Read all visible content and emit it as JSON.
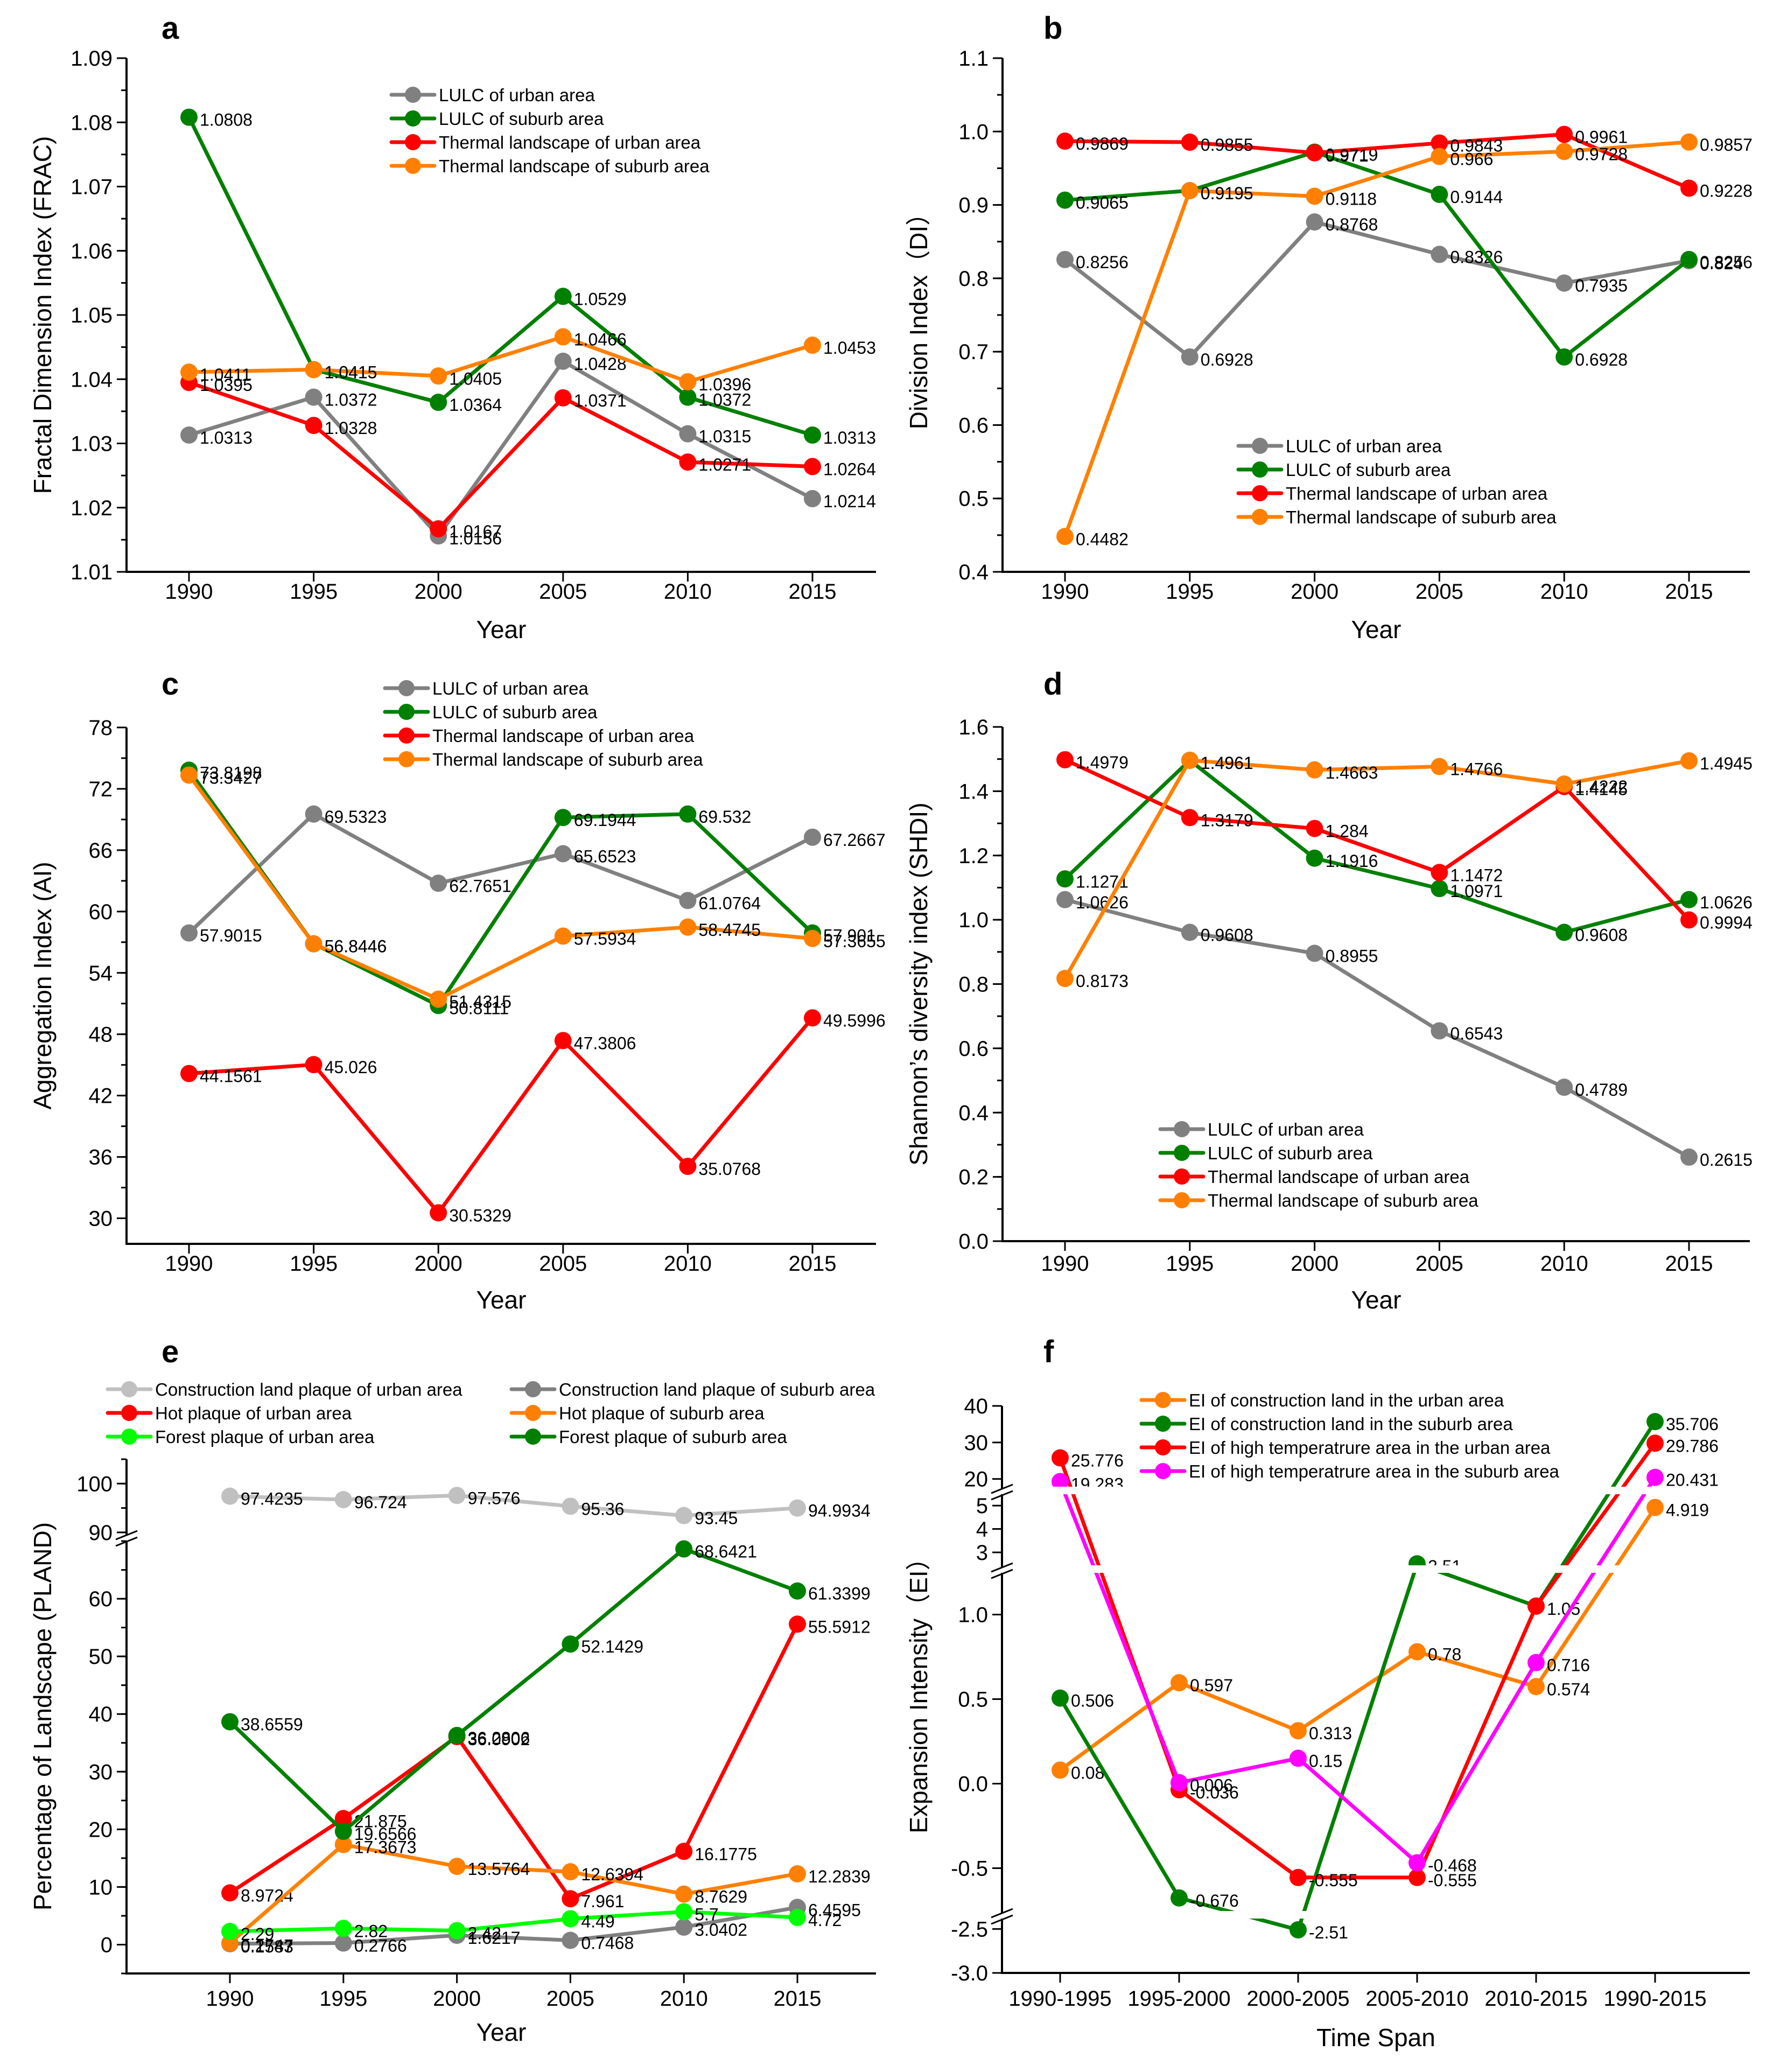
{
  "figure": {
    "panels": [
      "a",
      "b",
      "c",
      "d",
      "e",
      "f"
    ]
  },
  "colors": {
    "gray": "#808080",
    "green": "#008000",
    "red": "#ff0000",
    "orange": "#ff8000",
    "light_gray": "#c0c0c0",
    "light_green": "#00ff00",
    "magenta": "#ff00ff"
  },
  "chart_data": [
    {
      "id": "a",
      "panel_letter": "a",
      "type": "line",
      "xlabel": "Year",
      "ylabel": "Fractal Dimension Index (FRAC)",
      "categories": [
        "1990",
        "1995",
        "2000",
        "2005",
        "2010",
        "2015"
      ],
      "ylim": [
        1.01,
        1.09
      ],
      "yticks": [
        "1.01",
        "1.02",
        "1.03",
        "1.04",
        "1.05",
        "1.06",
        "1.07",
        "1.08",
        "1.09"
      ],
      "legend_position": "top-center",
      "series": [
        {
          "name": "LULC of urban area",
          "color": "#808080",
          "values": [
            1.0313,
            1.0372,
            1.0156,
            1.0428,
            1.0315,
            1.0214
          ],
          "labels": [
            "1.0313",
            "1.0372",
            "1.0156",
            "1.0428",
            "1.0315",
            "1.0214"
          ]
        },
        {
          "name": "LULC of suburb area",
          "color": "#008000",
          "values": [
            1.0808,
            1.0415,
            1.0364,
            1.0529,
            1.0372,
            1.0313
          ],
          "labels": [
            "1.0808",
            "1.0415",
            "1.0364",
            "1.0529",
            "1.0372",
            "1.0313"
          ]
        },
        {
          "name": "Thermal landscape of urban area",
          "color": "#ff0000",
          "values": [
            1.0395,
            1.0328,
            1.0167,
            1.0371,
            1.0271,
            1.0264
          ],
          "labels": [
            "1.0395",
            "1.0328",
            "1.0167",
            "1.0371",
            "1.0271",
            "1.0264"
          ]
        },
        {
          "name": "Thermal landscape of suburb area",
          "color": "#ff8000",
          "values": [
            1.0411,
            1.0415,
            1.0405,
            1.0466,
            1.0396,
            1.0453
          ],
          "labels": [
            "1.0411",
            "1.0415",
            "1.0405",
            "1.0466",
            "1.0396",
            "1.0453"
          ]
        }
      ]
    },
    {
      "id": "b",
      "panel_letter": "b",
      "type": "line",
      "xlabel": "Year",
      "ylabel": "Division Index（DI）",
      "categories": [
        "1990",
        "1995",
        "2000",
        "2005",
        "2010",
        "2015"
      ],
      "ylim": [
        0.4,
        1.1
      ],
      "yticks": [
        "0.4",
        "0.5",
        "0.6",
        "0.7",
        "0.8",
        "0.9",
        "1.0",
        "1.1"
      ],
      "legend_position": "bottom-center",
      "series": [
        {
          "name": "LULC of urban area",
          "color": "#808080",
          "values": [
            0.8256,
            0.6928,
            0.8768,
            0.8326,
            0.7935,
            0.824
          ],
          "labels": [
            "0.8256",
            "0.6928",
            "0.8768",
            "0.8326",
            "0.7935",
            "0.824"
          ]
        },
        {
          "name": "LULC of suburb area",
          "color": "#008000",
          "values": [
            0.9065,
            0.9195,
            0.9719,
            0.9144,
            0.6928,
            0.8256
          ],
          "labels": [
            "0.9065",
            "0.9195",
            "0.9719",
            "0.9144",
            "0.6928",
            "0.8256"
          ]
        },
        {
          "name": "Thermal landscape of urban area",
          "color": "#ff0000",
          "values": [
            0.9869,
            0.9855,
            0.971,
            0.9843,
            0.9961,
            0.9228
          ],
          "labels": [
            "0.9869",
            "0.9855",
            "0.971",
            "0.9843",
            "0.9961",
            "0.9228"
          ]
        },
        {
          "name": "Thermal landscape of suburb area",
          "color": "#ff8000",
          "values": [
            0.4482,
            0.9195,
            0.9118,
            0.966,
            0.9728,
            0.9857
          ],
          "labels": [
            "0.4482",
            "0.9195",
            "0.9118",
            "0.966",
            "0.9728",
            "0.9857"
          ]
        }
      ]
    },
    {
      "id": "c",
      "panel_letter": "c",
      "type": "line",
      "xlabel": "Year",
      "ylabel": "Aggregation Index (AI)",
      "categories": [
        "1990",
        "1995",
        "2000",
        "2005",
        "2010",
        "2015"
      ],
      "ylim": [
        27.5,
        78
      ],
      "yticks": [
        "30",
        "36",
        "42",
        "48",
        "54",
        "60",
        "66",
        "72",
        "78"
      ],
      "legend_position": "top-center",
      "series": [
        {
          "name": "LULC of urban area",
          "color": "#808080",
          "values": [
            57.9015,
            69.5323,
            62.7651,
            65.6523,
            61.0764,
            67.2667
          ],
          "labels": [
            "57.9015",
            "69.5323",
            "62.7651",
            "65.6523",
            "61.0764",
            "67.2667"
          ]
        },
        {
          "name": "LULC of suburb area",
          "color": "#008000",
          "values": [
            73.8198,
            56.8446,
            50.8111,
            69.1944,
            69.532,
            57.901
          ],
          "labels": [
            "73.8198",
            "56.8446",
            "50.8111",
            "69.1944",
            "69.532",
            "57.901"
          ]
        },
        {
          "name": "Thermal landscape of urban area",
          "color": "#ff0000",
          "values": [
            44.1561,
            45.026,
            30.5329,
            47.3806,
            35.0768,
            49.5996
          ],
          "labels": [
            "44.1561",
            "45.026",
            "30.5329",
            "47.3806",
            "35.0768",
            "49.5996"
          ]
        },
        {
          "name": "Thermal landscape of suburb area",
          "color": "#ff8000",
          "values": [
            73.3427,
            56.8446,
            51.4315,
            57.5934,
            58.4745,
            57.3655
          ],
          "labels": [
            "73.3427",
            "56.8446",
            "51.4315",
            "57.5934",
            "58.4745",
            "57.3655"
          ]
        }
      ]
    },
    {
      "id": "d",
      "panel_letter": "d",
      "type": "line",
      "xlabel": "Year",
      "ylabel": "Shannon’s diversity index (SHDI)",
      "categories": [
        "1990",
        "1995",
        "2000",
        "2005",
        "2010",
        "2015"
      ],
      "ylim": [
        0.0,
        1.6
      ],
      "yticks": [
        "0.0",
        "0.2",
        "0.4",
        "0.6",
        "0.8",
        "1.0",
        "1.2",
        "1.4",
        "1.6"
      ],
      "legend_position": "bottom-left",
      "series": [
        {
          "name": "LULC of urban area",
          "color": "#808080",
          "values": [
            1.0626,
            0.9608,
            0.8955,
            0.6543,
            0.4789,
            0.2615
          ],
          "labels": [
            "1.0626",
            "0.9608",
            "0.8955",
            "0.6543",
            "0.4789",
            "0.2615"
          ]
        },
        {
          "name": "LULC of suburb area",
          "color": "#008000",
          "values": [
            1.1271,
            1.4961,
            1.1916,
            1.0971,
            0.9608,
            1.0626
          ],
          "labels": [
            "1.1271",
            "1.4961",
            "1.1916",
            "1.0971",
            "0.9608",
            "1.0626"
          ]
        },
        {
          "name": "Thermal landscape of urban area",
          "color": "#ff0000",
          "values": [
            1.4979,
            1.3179,
            1.284,
            1.1472,
            1.4145,
            0.9994
          ],
          "labels": [
            "1.4979",
            "1.3179",
            "1.284",
            "1.1472",
            "1.4145",
            "0.9994"
          ]
        },
        {
          "name": "Thermal landscape of suburb area",
          "color": "#ff8000",
          "values": [
            0.8173,
            1.4961,
            1.4663,
            1.4766,
            1.4222,
            1.4945
          ],
          "labels": [
            "0.8173",
            "1.4961",
            "1.4663",
            "1.4766",
            "1.4222",
            "1.4945"
          ]
        }
      ]
    },
    {
      "id": "e",
      "panel_letter": "e",
      "type": "line",
      "xlabel": "Year",
      "ylabel": "Percentage of Landscape (PLAND)",
      "categories": [
        "1990",
        "1995",
        "2000",
        "2005",
        "2010",
        "2015"
      ],
      "y_segments": [
        {
          "range": [
            -5,
            70
          ],
          "ticks": [
            "0",
            "10",
            "20",
            "30",
            "40",
            "50",
            "60"
          ]
        },
        {
          "range": [
            88,
            105
          ],
          "ticks": [
            "90",
            "100"
          ]
        }
      ],
      "axis_break": "between 70 and 88",
      "legend_position": "top",
      "series": [
        {
          "name": "Construction land plaque of urban area",
          "color": "#c0c0c0",
          "values": [
            97.4235,
            96.724,
            97.576,
            95.36,
            93.45,
            94.9934
          ],
          "labels": [
            "97.4235",
            "96.724",
            "97.576",
            "95.36",
            "93.45",
            "94.9934"
          ]
        },
        {
          "name": "Construction land plaque of suburb area",
          "color": "#808080",
          "values": [
            0.1583,
            0.2766,
            1.6217,
            0.7468,
            3.0402,
            6.4595
          ],
          "labels": [
            "0.1583",
            "0.2766",
            "1.6217",
            "0.7468",
            "3.0402",
            "6.4595"
          ]
        },
        {
          "name": "Hot plaque of urban area",
          "color": "#ff0000",
          "values": [
            8.9724,
            21.875,
            36.0902,
            7.961,
            16.1775,
            55.5912
          ],
          "labels": [
            "8.9724",
            "21.875",
            "36.0902",
            "7.961",
            "16.1775",
            "55.5912"
          ]
        },
        {
          "name": "Hot plaque of suburb area",
          "color": "#ff8000",
          "values": [
            0.2747,
            17.3673,
            13.5764,
            12.6394,
            8.7629,
            12.2839
          ],
          "labels": [
            "0.2747",
            "17.3673",
            "13.5764",
            "12.6394",
            "8.7629",
            "12.2839"
          ]
        },
        {
          "name": "Forest  plaque of urban area",
          "color": "#00ff00",
          "values": [
            2.29,
            2.82,
            2.42,
            4.49,
            5.7,
            4.72
          ],
          "labels": [
            "2.29",
            "2.82",
            "2.42",
            "4.49",
            "5.7",
            "4.72"
          ]
        },
        {
          "name": "Forest  plaque of suburb area",
          "color": "#008000",
          "values": [
            38.6559,
            19.6566,
            36.2806,
            52.1429,
            68.6421,
            61.3399
          ],
          "labels": [
            "38.6559",
            "19.6566",
            "36.2806",
            "52.1429",
            "68.6421",
            "61.3399"
          ]
        }
      ]
    },
    {
      "id": "f",
      "panel_letter": "f",
      "type": "line",
      "xlabel": "Time Span",
      "ylabel": "Expansion Intensity（EI）",
      "categories": [
        "1990-1995",
        "1995-2000",
        "2000-2005",
        "2005-2010",
        "2010-2015",
        "1990-2015"
      ],
      "y_segments": [
        {
          "range": [
            -3.0,
            -2.4
          ],
          "ticks": [
            "-3.0",
            "-2.5"
          ]
        },
        {
          "range": [
            -0.75,
            1.25
          ],
          "ticks": [
            "-0.5",
            "0.0",
            "0.5",
            "1.0"
          ]
        },
        {
          "range": [
            2.4,
            5.6
          ],
          "ticks": [
            "3",
            "4",
            "5"
          ]
        },
        {
          "range": [
            17,
            40
          ],
          "ticks": [
            "20",
            "30",
            "40"
          ]
        }
      ],
      "axis_break": "three breaks",
      "legend_position": "top-center",
      "series": [
        {
          "name": "EI  of  construction land in the urban area",
          "color": "#ff8000",
          "values": [
            0.08,
            0.597,
            0.313,
            0.78,
            0.574,
            4.919
          ],
          "labels": [
            "0.08",
            "0.597",
            "0.313",
            "0.78",
            "0.574",
            "4.919"
          ]
        },
        {
          "name": "EI  of  construction land in the suburb area",
          "color": "#008000",
          "values": [
            0.506,
            -0.676,
            -2.51,
            2.51,
            1.05,
            35.706
          ],
          "labels": [
            "0.506",
            "-0.676",
            "-2.51",
            "2.51",
            "",
            "35.706"
          ]
        },
        {
          "name": "EI  of  high temperatrure area in the urban area",
          "color": "#ff0000",
          "values": [
            25.776,
            -0.036,
            -0.555,
            -0.555,
            1.05,
            29.786
          ],
          "labels": [
            "25.776",
            "-0.036",
            "-0.555",
            "-0.555",
            "1.05",
            "29.786"
          ]
        },
        {
          "name": "EI  of  high temperatrure area in the suburb area",
          "color": "#ff00ff",
          "values": [
            19.283,
            0.006,
            0.15,
            -0.468,
            0.716,
            20.431
          ],
          "labels": [
            "19.283",
            "0.006",
            "0.15",
            "-0.468",
            "0.716",
            "20.431"
          ]
        }
      ]
    }
  ]
}
